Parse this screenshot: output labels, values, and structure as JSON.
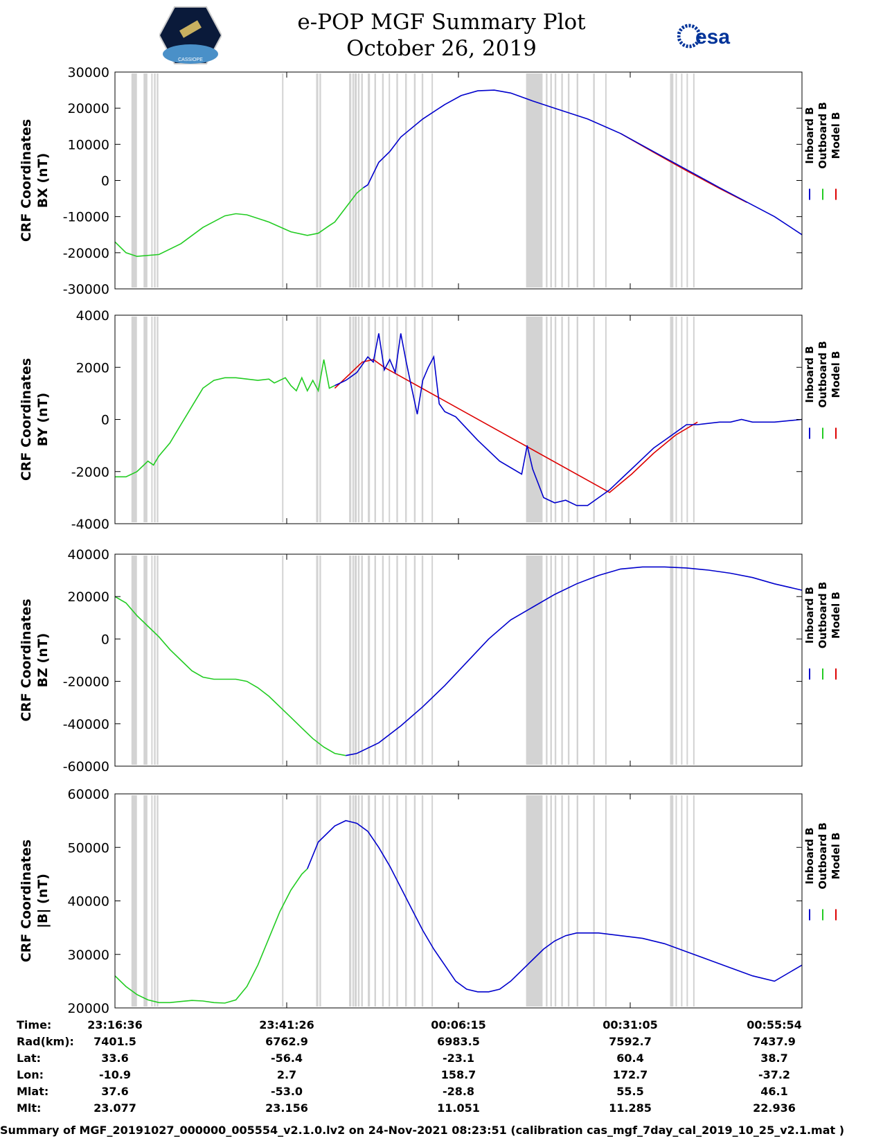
{
  "header": {
    "title": "e-POP MGF Summary Plot",
    "date": "October 26, 2019",
    "left_logo_text": "CASSIOPE",
    "right_logo_text": "esa"
  },
  "colors": {
    "inboard": "#0000cc",
    "outboard": "#22cc22",
    "model": "#dd0000",
    "gap": "#d3d3d3"
  },
  "chart_data": [
    {
      "type": "line",
      "title": "BX",
      "ylabel": [
        "CRF Coordinates",
        "BX (nT)"
      ],
      "ylim": [
        -30000,
        30000
      ],
      "yticks": [
        "30000",
        "20000",
        "10000",
        "0",
        "-10000",
        "-20000",
        "-30000"
      ],
      "x_range_s": [
        0,
        6000
      ],
      "legend": [
        "Inboard B",
        "Outboard B",
        "Model B"
      ],
      "series": {
        "outboard": [
          [
            0,
            -17000
          ],
          [
            100,
            -20000
          ],
          [
            200,
            -21000
          ],
          [
            400,
            -20500
          ],
          [
            600,
            -17500
          ],
          [
            800,
            -13000
          ],
          [
            1000,
            -9800
          ],
          [
            1100,
            -9200
          ],
          [
            1200,
            -9500
          ],
          [
            1400,
            -11500
          ],
          [
            1600,
            -14200
          ],
          [
            1750,
            -15200
          ],
          [
            1850,
            -14600
          ],
          [
            1950,
            -12500
          ],
          [
            2000,
            -11500
          ],
          [
            2100,
            -7500
          ],
          [
            2200,
            -3500
          ],
          [
            2260,
            -2000
          ]
        ],
        "inboard": [
          [
            2260,
            -2000
          ],
          [
            2300,
            -1200
          ],
          [
            2400,
            5000
          ],
          [
            2500,
            8000
          ],
          [
            2600,
            12000
          ],
          [
            2800,
            17000
          ],
          [
            3000,
            21000
          ],
          [
            3150,
            23500
          ],
          [
            3300,
            24800
          ],
          [
            3450,
            25000
          ],
          [
            3600,
            24200
          ],
          [
            3800,
            22000
          ],
          [
            4000,
            20000
          ],
          [
            4300,
            17000
          ],
          [
            4600,
            13000
          ],
          [
            4900,
            8000
          ],
          [
            5200,
            3000
          ],
          [
            5500,
            -2000
          ],
          [
            5750,
            -6000
          ],
          [
            6000,
            -10000
          ],
          [
            6250,
            -15000
          ]
        ],
        "model": [
          [
            4600,
            13000
          ],
          [
            4900,
            7800
          ],
          [
            5200,
            2700
          ],
          [
            5500,
            -2200
          ],
          [
            5750,
            -6100
          ]
        ]
      }
    },
    {
      "type": "line",
      "title": "BY",
      "ylabel": [
        "CRF Coordinates",
        "BY (nT)"
      ],
      "ylim": [
        -4000,
        4000
      ],
      "yticks": [
        "4000",
        "2000",
        "0",
        "-2000",
        "-4000"
      ],
      "x_range_s": [
        0,
        6000
      ],
      "legend": [
        "Inboard B",
        "Outboard B",
        "Model B"
      ],
      "series": {
        "outboard": [
          [
            0,
            -2200
          ],
          [
            100,
            -2200
          ],
          [
            200,
            -2000
          ],
          [
            300,
            -1600
          ],
          [
            350,
            -1750
          ],
          [
            400,
            -1400
          ],
          [
            500,
            -900
          ],
          [
            600,
            -200
          ],
          [
            700,
            500
          ],
          [
            800,
            1200
          ],
          [
            900,
            1500
          ],
          [
            1000,
            1600
          ],
          [
            1100,
            1600
          ],
          [
            1200,
            1550
          ],
          [
            1300,
            1500
          ],
          [
            1400,
            1550
          ],
          [
            1450,
            1400
          ],
          [
            1550,
            1600
          ],
          [
            1600,
            1300
          ],
          [
            1650,
            1100
          ],
          [
            1700,
            1600
          ],
          [
            1750,
            1100
          ],
          [
            1800,
            1500
          ],
          [
            1850,
            1100
          ],
          [
            1900,
            2300
          ],
          [
            1950,
            1200
          ],
          [
            2000,
            1300
          ]
        ],
        "inboard": [
          [
            2000,
            1300
          ],
          [
            2100,
            1500
          ],
          [
            2200,
            1800
          ],
          [
            2300,
            2400
          ],
          [
            2350,
            2200
          ],
          [
            2400,
            3300
          ],
          [
            2450,
            1900
          ],
          [
            2500,
            2300
          ],
          [
            2550,
            1800
          ],
          [
            2600,
            3300
          ],
          [
            2650,
            2200
          ],
          [
            2700,
            1200
          ],
          [
            2750,
            200
          ],
          [
            2800,
            1500
          ],
          [
            2850,
            2000
          ],
          [
            2900,
            2400
          ],
          [
            2950,
            600
          ],
          [
            3000,
            300
          ],
          [
            3100,
            100
          ],
          [
            3300,
            -800
          ],
          [
            3500,
            -1600
          ],
          [
            3700,
            -2100
          ],
          [
            3750,
            -1000
          ],
          [
            3800,
            -1900
          ],
          [
            3900,
            -3000
          ],
          [
            4000,
            -3200
          ],
          [
            4100,
            -3100
          ],
          [
            4200,
            -3300
          ],
          [
            4300,
            -3300
          ],
          [
            4400,
            -3000
          ],
          [
            4500,
            -2700
          ],
          [
            4600,
            -2300
          ],
          [
            4700,
            -1900
          ],
          [
            4800,
            -1500
          ],
          [
            4900,
            -1100
          ],
          [
            5000,
            -800
          ],
          [
            5100,
            -500
          ],
          [
            5200,
            -200
          ],
          [
            5300,
            -200
          ],
          [
            5500,
            -100
          ],
          [
            5600,
            -100
          ],
          [
            5700,
            0
          ],
          [
            5800,
            -100
          ],
          [
            6000,
            -100
          ],
          [
            6250,
            0
          ]
        ],
        "model": [
          [
            2000,
            1200
          ],
          [
            2250,
            2200
          ],
          [
            2350,
            2300
          ],
          [
            2450,
            2000
          ],
          [
            4500,
            -2800
          ],
          [
            4700,
            -2100
          ],
          [
            4900,
            -1300
          ],
          [
            5100,
            -600
          ],
          [
            5300,
            -100
          ]
        ]
      }
    },
    {
      "type": "line",
      "title": "BZ",
      "ylabel": [
        "CRF Coordinates",
        "BZ (nT)"
      ],
      "ylim": [
        -60000,
        40000
      ],
      "yticks": [
        "40000",
        "20000",
        "0",
        "-20000",
        "-40000",
        "-60000"
      ],
      "x_range_s": [
        0,
        6000
      ],
      "legend": [
        "Inboard B",
        "Outboard B",
        "Model B"
      ],
      "series": {
        "outboard": [
          [
            0,
            20000
          ],
          [
            100,
            17000
          ],
          [
            200,
            11000
          ],
          [
            300,
            6000
          ],
          [
            400,
            1000
          ],
          [
            500,
            -5000
          ],
          [
            600,
            -10000
          ],
          [
            700,
            -15000
          ],
          [
            800,
            -18000
          ],
          [
            900,
            -19000
          ],
          [
            1000,
            -19000
          ],
          [
            1100,
            -19000
          ],
          [
            1200,
            -20000
          ],
          [
            1300,
            -23000
          ],
          [
            1400,
            -27000
          ],
          [
            1500,
            -32000
          ],
          [
            1600,
            -37000
          ],
          [
            1700,
            -42000
          ],
          [
            1800,
            -47000
          ],
          [
            1900,
            -51000
          ],
          [
            2000,
            -54000
          ],
          [
            2100,
            -55000
          ]
        ],
        "inboard": [
          [
            2100,
            -55000
          ],
          [
            2200,
            -54000
          ],
          [
            2400,
            -49000
          ],
          [
            2600,
            -41000
          ],
          [
            2800,
            -32000
          ],
          [
            3000,
            -22000
          ],
          [
            3200,
            -11000
          ],
          [
            3400,
            0
          ],
          [
            3600,
            9000
          ],
          [
            3800,
            15000
          ],
          [
            4000,
            21000
          ],
          [
            4200,
            26000
          ],
          [
            4400,
            30000
          ],
          [
            4600,
            33000
          ],
          [
            4800,
            34000
          ],
          [
            5000,
            34000
          ],
          [
            5200,
            33500
          ],
          [
            5400,
            32500
          ],
          [
            5600,
            31000
          ],
          [
            5800,
            29000
          ],
          [
            6000,
            26000
          ],
          [
            6250,
            23000
          ]
        ],
        "model": []
      }
    },
    {
      "type": "line",
      "title": "|B|",
      "ylabel": [
        "CRF Coordinates",
        "|B| (nT)"
      ],
      "ylim": [
        20000,
        60000
      ],
      "yticks": [
        "60000",
        "50000",
        "40000",
        "30000",
        "20000"
      ],
      "x_range_s": [
        0,
        6000
      ],
      "legend": [
        "Inboard B",
        "Outboard B",
        "Model B"
      ],
      "series": {
        "outboard": [
          [
            0,
            26000
          ],
          [
            100,
            24000
          ],
          [
            200,
            22500
          ],
          [
            300,
            21500
          ],
          [
            400,
            21000
          ],
          [
            500,
            21000
          ],
          [
            600,
            21200
          ],
          [
            700,
            21400
          ],
          [
            800,
            21300
          ],
          [
            900,
            21000
          ],
          [
            1000,
            20900
          ],
          [
            1100,
            21500
          ],
          [
            1200,
            24000
          ],
          [
            1300,
            28000
          ],
          [
            1400,
            33000
          ],
          [
            1500,
            38000
          ],
          [
            1600,
            42000
          ],
          [
            1700,
            45000
          ],
          [
            1750,
            46000
          ]
        ],
        "inboard": [
          [
            1750,
            46000
          ],
          [
            1850,
            51000
          ],
          [
            2000,
            54000
          ],
          [
            2100,
            55000
          ],
          [
            2200,
            54500
          ],
          [
            2300,
            53000
          ],
          [
            2400,
            50000
          ],
          [
            2500,
            46500
          ],
          [
            2600,
            42500
          ],
          [
            2700,
            38500
          ],
          [
            2800,
            34500
          ],
          [
            2900,
            31000
          ],
          [
            3000,
            28000
          ],
          [
            3100,
            25000
          ],
          [
            3200,
            23500
          ],
          [
            3300,
            23000
          ],
          [
            3400,
            23000
          ],
          [
            3500,
            23500
          ],
          [
            3600,
            25000
          ],
          [
            3700,
            27000
          ],
          [
            3800,
            29000
          ],
          [
            3900,
            31000
          ],
          [
            4000,
            32500
          ],
          [
            4100,
            33500
          ],
          [
            4200,
            34000
          ],
          [
            4400,
            34000
          ],
          [
            4600,
            33500
          ],
          [
            4800,
            33000
          ],
          [
            5000,
            32000
          ],
          [
            5200,
            30500
          ],
          [
            5400,
            29000
          ],
          [
            5600,
            27500
          ],
          [
            5800,
            26000
          ],
          [
            6000,
            25000
          ],
          [
            6250,
            28000
          ]
        ],
        "model": []
      }
    }
  ],
  "gap_bands": [
    [
      150,
      200
    ],
    [
      260,
      295
    ],
    [
      330,
      340
    ],
    [
      355,
      370
    ],
    [
      380,
      395
    ],
    [
      1520,
      1530
    ],
    [
      1830,
      1850
    ],
    [
      1860,
      1875
    ],
    [
      2130,
      2150
    ],
    [
      2160,
      2175
    ],
    [
      2180,
      2200
    ],
    [
      2210,
      2225
    ],
    [
      2240,
      2255
    ],
    [
      2300,
      2320
    ],
    [
      2360,
      2375
    ],
    [
      2430,
      2445
    ],
    [
      2490,
      2500
    ],
    [
      2560,
      2575
    ],
    [
      2640,
      2655
    ],
    [
      2720,
      2735
    ],
    [
      2790,
      2805
    ],
    [
      2880,
      2890
    ],
    [
      3740,
      3890
    ],
    [
      3920,
      3935
    ],
    [
      3960,
      3975
    ],
    [
      4000,
      4015
    ],
    [
      4060,
      4075
    ],
    [
      4120,
      4135
    ],
    [
      4200,
      4215
    ],
    [
      4350,
      4365
    ],
    [
      4460,
      4470
    ],
    [
      5050,
      5080
    ],
    [
      5100,
      5105
    ],
    [
      5150,
      5155
    ],
    [
      5200,
      5205
    ],
    [
      5260,
      5265
    ]
  ],
  "time_table": {
    "labels": [
      "Time:",
      "Rad(km):",
      "Lat:",
      "Lon:",
      "Mlat:",
      "Mlt:"
    ],
    "columns": [
      {
        "time": "23:16:36",
        "rad": "7401.5",
        "lat": "33.6",
        "lon": "-10.9",
        "mlat": "37.6",
        "mlt": "23.077"
      },
      {
        "time": "23:41:26",
        "rad": "6762.9",
        "lat": "-56.4",
        "lon": "2.7",
        "mlat": "-53.0",
        "mlt": "23.156"
      },
      {
        "time": "00:06:15",
        "rad": "6983.5",
        "lat": "-23.1",
        "lon": "158.7",
        "mlat": "-28.8",
        "mlt": "11.051"
      },
      {
        "time": "00:31:05",
        "rad": "7592.7",
        "lat": "60.4",
        "lon": "172.7",
        "mlat": "55.5",
        "mlt": "11.285"
      },
      {
        "time": "00:55:54",
        "rad": "7437.9",
        "lat": "38.7",
        "lon": "-37.2",
        "mlat": "46.1",
        "mlt": "22.936"
      }
    ]
  },
  "footer": "Summary of MGF_20191027_000000_005554_v2.1.0.lv2 on 24-Nov-2021 08:23:51 (calibration cas_mgf_7day_cal_2019_10_25_v2.1.mat )"
}
